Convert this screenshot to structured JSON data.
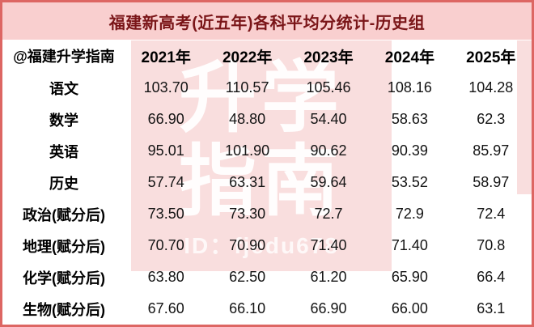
{
  "title": "福建新高考(近五年)各科平均分统计-历史组",
  "watermark": {
    "line1": "升学",
    "line2": "指南",
    "id_label": "ID：fjedu678"
  },
  "colors": {
    "border": "#dd6663",
    "title_bg": "#f9cfcf",
    "title_text": "#7a1518",
    "watermark_bg": "#f9dede",
    "watermark_text": "#ffffff",
    "body_text": "#111111"
  },
  "chart_data": {
    "type": "table",
    "title": "福建新高考(近五年)各科平均分统计-历史组",
    "columns": [
      "@福建升学指南",
      "2021年",
      "2022年",
      "2023年",
      "2024年",
      "2025年"
    ],
    "rows": [
      [
        "语文",
        "103.70",
        "110.57",
        "105.46",
        "108.16",
        "104.28"
      ],
      [
        "数学",
        "66.90",
        "48.80",
        "54.40",
        "58.63",
        "62.3"
      ],
      [
        "英语",
        "95.01",
        "101.90",
        "90.62",
        "90.39",
        "85.97"
      ],
      [
        "历史",
        "57.74",
        "63.31",
        "59.64",
        "53.52",
        "58.97"
      ],
      [
        "政治(赋分后)",
        "73.50",
        "73.30",
        "72.7",
        "72.9",
        "72.4"
      ],
      [
        "地理(赋分后)",
        "70.70",
        "70.90",
        "71.40",
        "71.40",
        "70.8"
      ],
      [
        "化学(赋分后)",
        "63.80",
        "62.50",
        "61.20",
        "65.90",
        "66.4"
      ],
      [
        "生物(赋分后)",
        "67.60",
        "66.10",
        "66.90",
        "66.00",
        "63.1"
      ]
    ]
  }
}
